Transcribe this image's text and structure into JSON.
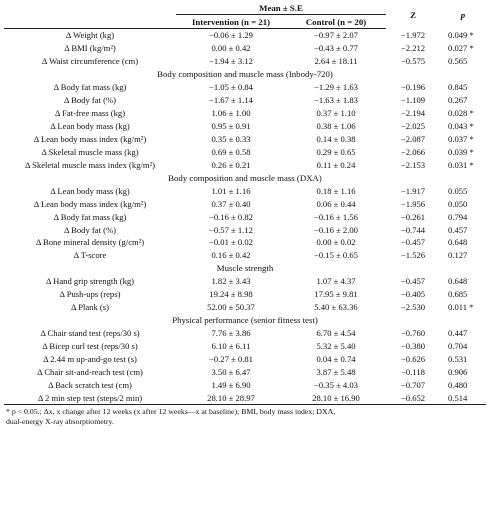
{
  "header": {
    "mean_label": "Mean ± S.E",
    "intervention_label": "Intervention (n = 21)",
    "control_label": "Control (n = 20)",
    "z_label": "Z",
    "p_label": "p"
  },
  "rows": [
    {
      "type": "data",
      "label": "Δ Weight (kg)",
      "intervention": "−0.06 ± 1.29",
      "control": "−0.97 ± 2.07",
      "z": "−1.972",
      "p": "0.049 *"
    },
    {
      "type": "data",
      "label": "Δ BMI (kg/m²)",
      "intervention": "0.00 ± 0.42",
      "control": "−0.43 ± 0.77",
      "z": "−2.212",
      "p": "0.027 *"
    },
    {
      "type": "data",
      "label": "Δ Waist circumference (cm)",
      "intervention": "−1.94 ± 3.12",
      "control": "2.64 ± 18.11",
      "z": "−0.575",
      "p": "0.565"
    },
    {
      "type": "section",
      "label": "Body composition and muscle mass (Inbody-720)"
    },
    {
      "type": "data",
      "label": "Δ Body fat mass (kg)",
      "intervention": "−1.05 ± 0.84",
      "control": "−1.29 ± 1.63",
      "z": "−0.196",
      "p": "0.845"
    },
    {
      "type": "data",
      "label": "Δ Body fat (%)",
      "intervention": "−1.67 ± 1.14",
      "control": "−1.63 ± 1.83",
      "z": "−1.109",
      "p": "0.267"
    },
    {
      "type": "data",
      "label": "Δ Fat-free mass (kg)",
      "intervention": "1.06 ± 1.00",
      "control": "0.37 ± 1.10",
      "z": "−2.194",
      "p": "0.028 *"
    },
    {
      "type": "data",
      "label": "Δ Lean body mass (kg)",
      "intervention": "0.95 ± 0.91",
      "control": "0.38 ± 1.06",
      "z": "−2.025",
      "p": "0.043 *"
    },
    {
      "type": "data",
      "label": "Δ Lean body mass index (kg/m²)",
      "intervention": "0.35 ± 0.33",
      "control": "0.14 ± 0.38",
      "z": "−2.087",
      "p": "0.037 *"
    },
    {
      "type": "data",
      "label": "Δ Skeletal muscle mass (kg)",
      "intervention": "0.69 ± 0.58",
      "control": "0.29 ± 0.65",
      "z": "−2.066",
      "p": "0.039 *"
    },
    {
      "type": "data",
      "label": "Δ Skeletal muscle mass index (kg/m²)",
      "intervention": "0.26 ± 0.21",
      "control": "0.11 ± 0.24",
      "z": "−2.153",
      "p": "0.031 *"
    },
    {
      "type": "section",
      "label": "Body composition and muscle mass (DXA)"
    },
    {
      "type": "data",
      "label": "Δ Lean body mass (kg)",
      "intervention": "1.01 ± 1.16",
      "control": "0.18 ± 1.16",
      "z": "−1.917",
      "p": "0.055"
    },
    {
      "type": "data",
      "label": "Δ Lean body mass index (kg/m²)",
      "intervention": "0.37 ± 0.40",
      "control": "0.06 ± 0.44",
      "z": "−1.956",
      "p": "0.050"
    },
    {
      "type": "data",
      "label": "Δ Body fat mass (kg)",
      "intervention": "−0.16 ± 0.82",
      "control": "−0.16 ± 1.56",
      "z": "−0.261",
      "p": "0.794"
    },
    {
      "type": "data",
      "label": "Δ Body fat (%)",
      "intervention": "−0.57 ± 1.12",
      "control": "−0.16 ± 2.00",
      "z": "−0.744",
      "p": "0.457"
    },
    {
      "type": "data",
      "label": "Δ Bone mineral density (g/cm²)",
      "intervention": "−0.01 ± 0.02",
      "control": "0.00 ± 0.02",
      "z": "−0.457",
      "p": "0.648"
    },
    {
      "type": "data",
      "label": "Δ T-score",
      "intervention": "0.16 ± 0.42",
      "control": "−0.15 ± 0.65",
      "z": "−1.526",
      "p": "0.127"
    },
    {
      "type": "section",
      "label": "Muscle strength"
    },
    {
      "type": "data",
      "label": "Δ Hand grip strength (kg)",
      "intervention": "1.82 ± 3.43",
      "control": "1.07 ± 4.37",
      "z": "−0.457",
      "p": "0.648"
    },
    {
      "type": "data",
      "label": "Δ Push-ups (reps)",
      "intervention": "19.24 ± 8.98",
      "control": "17.95 ± 9.81",
      "z": "−0.405",
      "p": "0.685"
    },
    {
      "type": "data",
      "label": "Δ Plank (s)",
      "intervention": "52.00 ± 50.37",
      "control": "5.40 ± 63.36",
      "z": "−2.530",
      "p": "0.011 *"
    },
    {
      "type": "section",
      "label": "Physical performance (senior fitness test)"
    },
    {
      "type": "data",
      "label": "Δ Chair stand test (reps/30 s)",
      "intervention": "7.76 ± 3.86",
      "control": "6.70 ± 4.54",
      "z": "−0.760",
      "p": "0.447"
    },
    {
      "type": "data",
      "label": "Δ Bicep curl test (reps/30 s)",
      "intervention": "6.10 ± 6.11",
      "control": "5.32 ± 5.40",
      "z": "−0.380",
      "p": "0.704"
    },
    {
      "type": "data",
      "label": "Δ 2.44 m up-and-go test (s)",
      "intervention": "−0.27 ± 0.81",
      "control": "0.04 ± 0.74",
      "z": "−0.626",
      "p": "0.531"
    },
    {
      "type": "data",
      "label": "Δ Chair sit-and-reach test (cm)",
      "intervention": "3.50 ± 6.47",
      "control": "3.87 ± 5.48",
      "z": "−0.118",
      "p": "0.906"
    },
    {
      "type": "data",
      "label": "Δ Back scratch test (cm)",
      "intervention": "1.49 ± 6.90",
      "control": "−0.35 ± 4.03",
      "z": "−0.707",
      "p": "0.480"
    },
    {
      "type": "data",
      "label": "Δ 2 min step test (steps/2 min)",
      "intervention": "28.10 ± 28.97",
      "control": "28.10 ± 16.90",
      "z": "−0.652",
      "p": "0.514"
    }
  ],
  "footnote": {
    "line1": "* p < 0.05.; Δx, x change after 12 weeks (x after 12 weeks—x at baseline); BMI, body mass index; DXA,",
    "line2": "dual-energy X-ray absorptiometry."
  }
}
